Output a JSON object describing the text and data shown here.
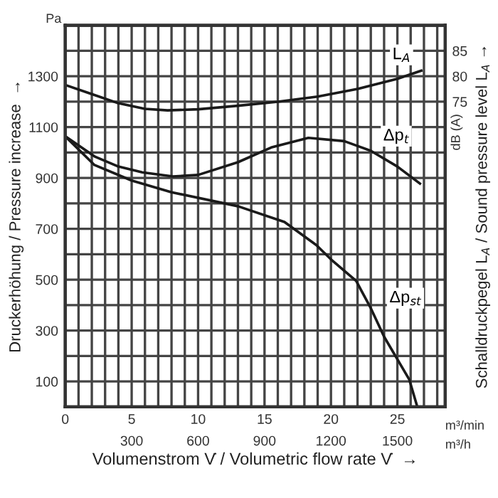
{
  "chart_data": {
    "type": "line",
    "xlabel": "Volumenstrom V̇ / Volumetric flow rate V̇  →",
    "ylabel": "Druckerhöhung / Pressure increase  →",
    "y2label": "Schalldruckpegel L$_{A}$ / Sound pressure level L$_{A}$ →",
    "annotations": [
      "Pa",
      "dB (A)",
      "m³/min",
      "m³/h"
    ],
    "xlim": [
      0,
      28.6
    ],
    "ylim": [
      0,
      1500
    ],
    "y2lim": [
      15,
      90
    ],
    "xticks": [
      0,
      {
        "value": 1,
        "label": null
      },
      {
        "value": 2,
        "label": null
      },
      {
        "value": 3,
        "label": null
      },
      {
        "value": 4,
        "label": null
      },
      5,
      {
        "value": 6,
        "label": null
      },
      {
        "value": 7,
        "label": null
      },
      {
        "value": 8,
        "label": null
      },
      {
        "value": 9,
        "label": null
      },
      10,
      {
        "value": 11,
        "label": null
      },
      {
        "value": 12,
        "label": null
      },
      {
        "value": 13,
        "label": null
      },
      {
        "value": 14,
        "label": null
      },
      15,
      {
        "value": 16,
        "label": null
      },
      {
        "value": 17,
        "label": null
      },
      {
        "value": 18,
        "label": null
      },
      {
        "value": 19,
        "label": null
      },
      20,
      {
        "value": 21,
        "label": null
      },
      {
        "value": 22,
        "label": null
      },
      {
        "value": 23,
        "label": null
      },
      {
        "value": 24,
        "label": null
      },
      25,
      {
        "value": 26,
        "label": null
      },
      {
        "value": 27,
        "label": null
      },
      {
        "value": 28,
        "label": null
      }
    ],
    "x2lim": [
      0,
      1716
    ],
    "x2ticks": [
      300,
      600,
      900,
      1200,
      1500
    ],
    "yticks": [
      100,
      {
        "value": 200,
        "label": null
      },
      300,
      {
        "value": 400,
        "label": null
      },
      500,
      {
        "value": 600,
        "label": null
      },
      700,
      {
        "value": 800,
        "label": null
      },
      900,
      {
        "value": 1000,
        "label": null
      },
      1100,
      {
        "value": 1200,
        "label": null
      },
      1300,
      {
        "value": 1400,
        "label": null
      }
    ],
    "y2ticks": [
      75,
      80,
      85
    ],
    "grid": true,
    "legend": false,
    "marker": "none",
    "line_style": "solid",
    "series": [
      {
        "name": "L$_{A}$",
        "color": "#1a1a1a",
        "axis": "y2",
        "x": [
          0,
          2,
          4,
          6,
          7.7,
          10,
          13,
          16,
          19,
          22,
          25,
          26.8
        ],
        "values": [
          78.3,
          76.5,
          74.7,
          73.6,
          73.3,
          73.5,
          74.2,
          75.0,
          76.0,
          77.5,
          79.5,
          81.1
        ]
      },
      {
        "name": "Δp$_{t}$",
        "color": "#1a1a1a",
        "x": [
          0,
          2.2,
          4,
          5.8,
          8.1,
          10,
          13,
          15.5,
          18.3,
          21,
          23,
          25,
          26.7
        ],
        "values": [
          1064,
          985,
          945,
          922,
          906,
          912,
          962,
          1020,
          1058,
          1045,
          1007,
          945,
          878
        ]
      },
      {
        "name": "Δp$_{st}$",
        "color": "#1a1a1a",
        "x": [
          0,
          2.2,
          5,
          8,
          13,
          16.5,
          18.9,
          20,
          21.9,
          23,
          24,
          25.9,
          26.5
        ],
        "values": [
          1064,
          951,
          890,
          844,
          789,
          727,
          636,
          580,
          495,
          388,
          276,
          107,
          0
        ]
      }
    ]
  }
}
